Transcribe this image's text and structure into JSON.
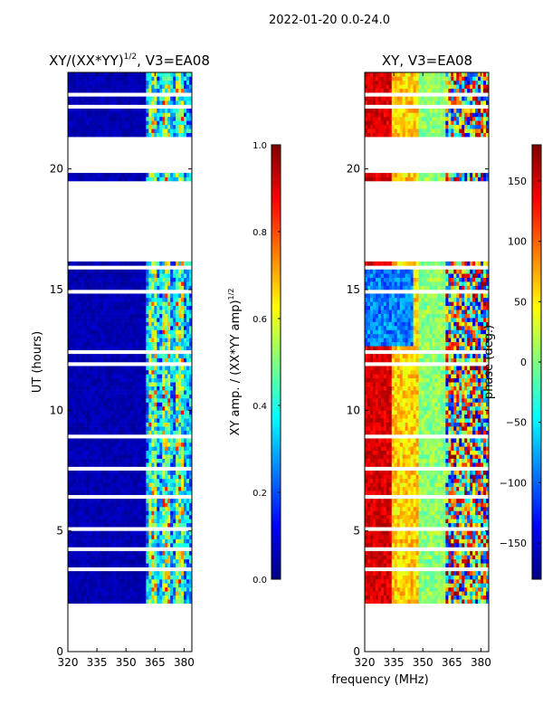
{
  "suptitle": "2022-01-20 0.0-24.0",
  "x_common_label": "frequency (MHz)",
  "colors": {
    "jet": [
      "#00007f",
      "#0000ff",
      "#007fff",
      "#00ffff",
      "#7fff7f",
      "#ffff00",
      "#ff7f00",
      "#ff0000",
      "#7f0000"
    ],
    "gap": "#ffffff"
  },
  "chart_data": [
    {
      "type": "heatmap",
      "title_main": "XY/(XX*YY)",
      "title_sup": "1/2",
      "title_tail": ", V3=EA08",
      "xlabel": "",
      "ylabel": "UT (hours)",
      "xlim": [
        320,
        384
      ],
      "ylim": [
        0,
        24
      ],
      "xticks": [
        "320",
        "335",
        "350",
        "365",
        "380"
      ],
      "yticks": [
        "0",
        "5",
        "10",
        "15",
        "20"
      ],
      "mode": "amplitude",
      "data_hours": [
        2.0,
        24.0
      ],
      "gaps_hours": [
        [
          2.1,
          2.2
        ],
        [
          2.45,
          2.55
        ],
        [
          3.4,
          3.5
        ],
        [
          3.6,
          3.65
        ],
        [
          4.2,
          4.3
        ],
        [
          5.0,
          5.1
        ],
        [
          5.8,
          5.9
        ],
        [
          6.4,
          6.5
        ],
        [
          7.5,
          7.6
        ],
        [
          8.6,
          8.7
        ],
        [
          8.9,
          9.0
        ],
        [
          11.8,
          12.0
        ],
        [
          12.4,
          12.5
        ],
        [
          13.8,
          13.9
        ],
        [
          14.9,
          15.0
        ],
        [
          15.3,
          15.4
        ],
        [
          15.9,
          16.0
        ],
        [
          16.1,
          18.8
        ],
        [
          18.9,
          19.5
        ],
        [
          19.9,
          21.4
        ],
        [
          21.6,
          21.7
        ],
        [
          22.1,
          22.2
        ],
        [
          22.5,
          22.6
        ],
        [
          23.0,
          23.1
        ],
        [
          23.6,
          23.7
        ]
      ],
      "colorbar": {
        "label_main": "XY amp. / (XX*YY amp)",
        "label_sup": "1/2",
        "range": [
          0.0,
          1.0
        ],
        "ticks": [
          "0.0",
          "0.2",
          "0.4",
          "0.6",
          "0.8",
          "1.0"
        ]
      }
    },
    {
      "type": "heatmap",
      "title_main": "XY, V3=EA08",
      "title_sup": "",
      "title_tail": "",
      "xlabel": "frequency (MHz)",
      "ylabel": "",
      "xlim": [
        320,
        384
      ],
      "ylim": [
        0,
        24
      ],
      "xticks": [
        "320",
        "335",
        "350",
        "365",
        "380"
      ],
      "yticks": [
        "0",
        "5",
        "10",
        "15",
        "20"
      ],
      "mode": "phase",
      "data_hours": [
        2.0,
        24.0
      ],
      "gaps_hours": [
        [
          2.1,
          2.2
        ],
        [
          2.45,
          2.55
        ],
        [
          3.4,
          3.5
        ],
        [
          3.6,
          3.65
        ],
        [
          4.2,
          4.3
        ],
        [
          5.0,
          5.1
        ],
        [
          5.8,
          5.9
        ],
        [
          6.4,
          6.5
        ],
        [
          7.5,
          7.6
        ],
        [
          8.6,
          8.7
        ],
        [
          8.9,
          9.0
        ],
        [
          11.8,
          12.0
        ],
        [
          12.4,
          12.5
        ],
        [
          13.8,
          13.9
        ],
        [
          14.9,
          15.0
        ],
        [
          15.3,
          15.4
        ],
        [
          15.9,
          16.0
        ],
        [
          16.1,
          18.8
        ],
        [
          18.9,
          19.5
        ],
        [
          19.9,
          21.4
        ],
        [
          21.6,
          21.7
        ],
        [
          22.1,
          22.2
        ],
        [
          22.5,
          22.6
        ],
        [
          23.0,
          23.1
        ],
        [
          23.6,
          23.7
        ]
      ],
      "colorbar": {
        "label_main": "phase (deg.)",
        "label_sup": "",
        "range": [
          -180,
          180
        ],
        "ticks": [
          "−150",
          "−100",
          "−50",
          "0",
          "50",
          "100",
          "150"
        ]
      }
    }
  ]
}
